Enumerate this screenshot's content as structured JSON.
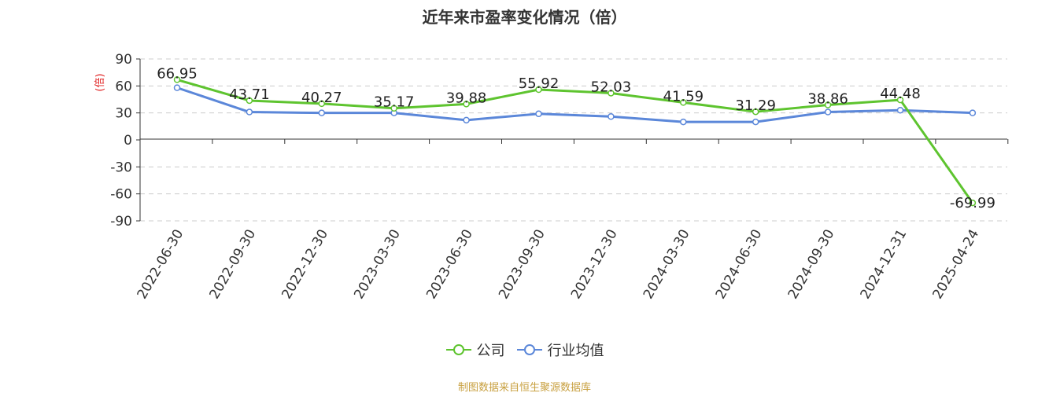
{
  "chart_data": {
    "type": "line",
    "title": "近年来市盈率变化情况（倍）",
    "ylabel": "(倍)",
    "xlabel": "",
    "categories": [
      "2022-06-30",
      "2022-09-30",
      "2022-12-30",
      "2023-03-30",
      "2023-06-30",
      "2023-09-30",
      "2023-12-30",
      "2024-03-30",
      "2024-06-30",
      "2024-09-30",
      "2024-12-31",
      "2025-04-24"
    ],
    "ylim": [
      -90,
      90
    ],
    "yticks": [
      90,
      60,
      30,
      0,
      -30,
      -60,
      -90
    ],
    "grid": true,
    "legend_position": "bottom",
    "series": [
      {
        "name": "公司",
        "color": "#5ec42f",
        "values": [
          66.95,
          43.71,
          40.27,
          35.17,
          39.88,
          55.92,
          52.03,
          41.59,
          31.29,
          38.86,
          44.48,
          -69.99
        ],
        "labels": [
          "66.95",
          "43.71",
          "40.27",
          "35.17",
          "39.88",
          "55.92",
          "52.03",
          "41.59",
          "31.29",
          "38.86",
          "44.48",
          "-69.99"
        ]
      },
      {
        "name": "行业均值",
        "color": "#5b87d9",
        "values": [
          58,
          31,
          30,
          30,
          22,
          29,
          26,
          20,
          20,
          31,
          33,
          30
        ]
      }
    ]
  },
  "source_note": "制图数据来自恒生聚源数据库",
  "colors": {
    "title": "#333333",
    "axis": "#333333",
    "grid": "#cccccc",
    "ylabel": "#e02020",
    "source_note": "#c8a040"
  }
}
